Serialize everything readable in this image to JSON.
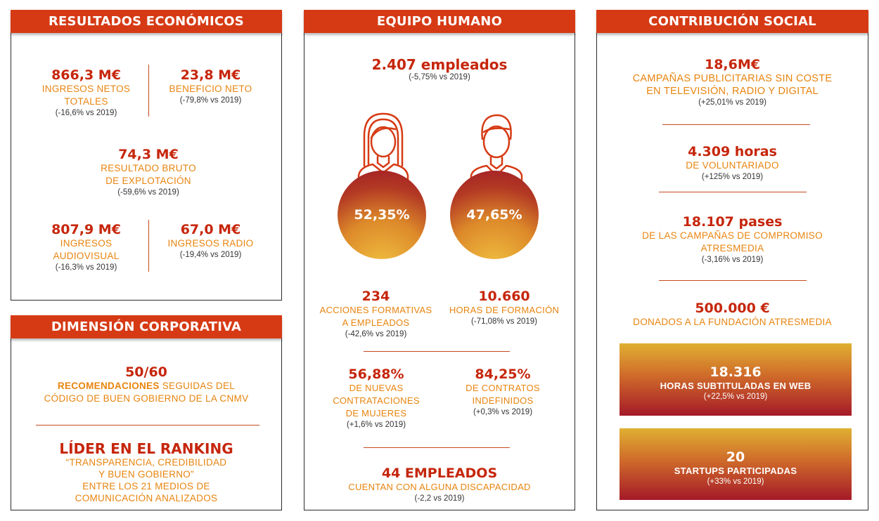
{
  "resultados": {
    "title": "RESULTADOS ECONÓMICOS",
    "ingresos_netos": {
      "value": "866,3 M€",
      "label1": "INGRESOS NETOS",
      "label2": "TOTALES",
      "cmp": "(-16,6% vs 2019)"
    },
    "beneficio": {
      "value": "23,8 M€",
      "label1": "BENEFICIO NETO",
      "cmp": "(-79,8% vs 2019)"
    },
    "resultado_bruto": {
      "value": "74,3 M€",
      "label1": "RESULTADO BRUTO",
      "label2": "DE EXPLOTACIÓN",
      "cmp": "(-59,6% vs 2019)"
    },
    "audiovisual": {
      "value": "807,9 M€",
      "label1": "INGRESOS",
      "label2": "AUDIOVISUAL",
      "cmp": "(-16,3% vs 2019)"
    },
    "radio": {
      "value": "67,0 M€",
      "label1": "INGRESOS RADIO",
      "cmp": "(-19,4% vs 2019)"
    }
  },
  "corporativa": {
    "title": "DIMENSIÓN CORPORATIVA",
    "recomendaciones": {
      "value": "50/60",
      "label1_bold": "RECOMENDACIONES",
      "label1_rest": " SEGUIDAS DEL",
      "label2": "CÓDIGO DE BUEN GOBIERNO DE LA CNMV"
    },
    "ranking": {
      "value": "LÍDER EN EL RANKING",
      "label1": "“TRANSPARENCIA, CREDIBILIDAD",
      "label2": "Y BUEN GOBIERNO”",
      "label3": "ENTRE LOS 21 MEDIOS DE",
      "label4": "COMUNICACIÓN ANALIZADOS"
    }
  },
  "equipo": {
    "title": "EQUIPO HUMANO",
    "empleados": {
      "value": "2.407 empleados",
      "cmp": "(-5,75% vs 2019)"
    },
    "mujeres_pct": "52,35%",
    "hombres_pct": "47,65%",
    "acciones": {
      "value": "234",
      "label1": "ACCIONES FORMATIVAS",
      "label2": "A EMPLEADOS",
      "cmp": "(-42,6% vs 2019)"
    },
    "horas": {
      "value": "10.660",
      "label1": "HORAS DE FORMACIÓN",
      "cmp": "(-71,08% vs 2019)"
    },
    "nuevas": {
      "value": "56,88%",
      "label1": "DE NUEVAS",
      "label2": "CONTRATACIONES",
      "label3": "DE MUJERES",
      "cmp": "(+1,6% vs 2019)"
    },
    "indefinidos": {
      "value": "84,25%",
      "label1": "DE CONTRATOS",
      "label2": "INDEFINIDOS",
      "cmp": "(+0,3% vs 2019)"
    },
    "discapacidad": {
      "value": "44 EMPLEADOS",
      "label1": "CUENTAN CON ALGUNA DISCAPACIDAD",
      "cmp": "(-2,2 vs 2019)"
    }
  },
  "social": {
    "title": "CONTRIBUCIÓN SOCIAL",
    "campanas": {
      "value": "18,6M€",
      "label1": "CAMPAÑAS PUBLICITARIAS SIN COSTE",
      "label2": "EN TELEVISIÓN, RADIO Y DIGITAL",
      "cmp": "(+25,01% vs 2019)"
    },
    "voluntariado": {
      "value": "4.309 horas",
      "label1": "DE VOLUNTARIADO",
      "cmp": "(+125% vs 2019)"
    },
    "pases": {
      "value": "18.107 pases",
      "label1": "DE LAS CAMPAÑAS DE COMPROMISO",
      "label2": "ATRESMEDIA",
      "cmp": "(-3,16% vs 2019)"
    },
    "donados": {
      "value": "500.000 €",
      "label1": "DONADOS A LA FUNDACIÓN ATRESMEDIA"
    },
    "subtituladas": {
      "value": "18.316",
      "label1": "HORAS SUBTITULADAS EN WEB",
      "cmp": "(+22,5% vs 2019)"
    },
    "startups": {
      "value": "20",
      "label1": "STARTUPS PARTICIPADAS",
      "cmp": "(+33% vs 2019)"
    }
  },
  "colors": {
    "header": "#d63a14",
    "value": "#c6260c",
    "label": "#e8840e"
  }
}
